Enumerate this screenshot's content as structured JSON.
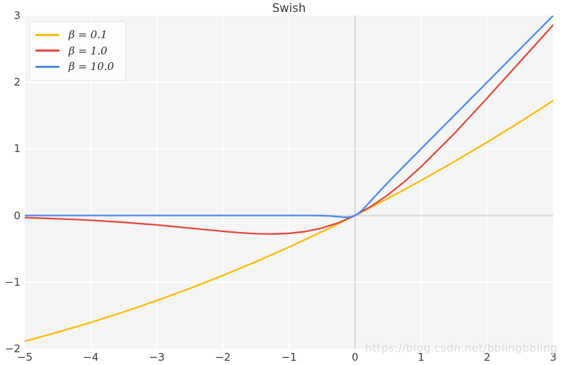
{
  "figure": {
    "title": "Swish",
    "watermark": "https://blog.csdn.net/bblingbbling"
  },
  "colors": {
    "background": "#ffffff",
    "plot_background": "#f5f5f6",
    "grid": "#ffffff",
    "zero_line": "#d8d8d8",
    "tick_label": "#3d3d3d",
    "title": "#3a3a3a",
    "watermark": "#dbdbdb",
    "legend_background": "#fdfdfe",
    "legend_border": "#e7e7ea"
  },
  "chart_data": {
    "type": "line",
    "title": "Swish",
    "xlabel": "",
    "ylabel": "",
    "xlim": [
      -5,
      3
    ],
    "ylim": [
      -2,
      3
    ],
    "grid": true,
    "legend_position": "upper left",
    "xticks": {
      "values": [
        -5,
        -4,
        -3,
        -2,
        -1,
        0,
        1,
        2,
        3
      ],
      "labels": [
        "−5",
        "−4",
        "−3",
        "−2",
        "−1",
        "0",
        "1",
        "2",
        "3"
      ]
    },
    "yticks": {
      "values": [
        -2,
        -1,
        0,
        1,
        2,
        3
      ],
      "labels": [
        "−2",
        "−1",
        "0",
        "1",
        "2",
        "3"
      ]
    },
    "series": [
      {
        "name": "β = 0.1",
        "color": "#fbbc05",
        "x": [
          -5,
          -4.5,
          -4,
          -3.5,
          -3,
          -2.5,
          -2,
          -1.5,
          -1,
          -0.5,
          0,
          0.5,
          1,
          1.5,
          2,
          2.5,
          3
        ],
        "y": [
          -1.888,
          -1.752,
          -1.605,
          -1.447,
          -1.277,
          -1.095,
          -0.9,
          -0.694,
          -0.475,
          -0.244,
          0,
          0.256,
          0.525,
          0.806,
          1.1,
          1.405,
          1.723
        ]
      },
      {
        "name": "β = 1.0",
        "color": "#e5493d",
        "x": [
          -5,
          -4.5,
          -4,
          -3.5,
          -3,
          -2.5,
          -2,
          -1.75,
          -1.5,
          -1.25,
          -1,
          -0.75,
          -0.5,
          -0.25,
          0,
          0.25,
          0.5,
          0.75,
          1,
          1.5,
          2,
          2.5,
          3
        ],
        "y": [
          -0.033,
          -0.049,
          -0.072,
          -0.103,
          -0.142,
          -0.19,
          -0.238,
          -0.259,
          -0.274,
          -0.278,
          -0.269,
          -0.241,
          -0.189,
          -0.109,
          0,
          0.141,
          0.311,
          0.509,
          0.731,
          1.226,
          1.762,
          2.31,
          2.858
        ]
      },
      {
        "name": "β = 10.0",
        "color": "#4c8bf5",
        "x": [
          -5,
          -4,
          -3,
          -2,
          -1.5,
          -1,
          -0.7,
          -0.5,
          -0.4,
          -0.3,
          -0.25,
          -0.2,
          -0.15,
          -0.1,
          -0.05,
          0,
          0.05,
          0.1,
          0.15,
          0.2,
          0.3,
          0.4,
          0.5,
          0.75,
          1,
          1.5,
          2,
          2.5,
          3
        ],
        "y": [
          0,
          0,
          0,
          0,
          0,
          0,
          -0.0006,
          -0.0034,
          -0.0072,
          -0.0142,
          -0.0189,
          -0.0238,
          -0.0274,
          -0.0269,
          -0.0189,
          0,
          0.0311,
          0.0731,
          0.1226,
          0.1762,
          0.2858,
          0.3928,
          0.4967,
          0.7496,
          1.0,
          1.5,
          2.0,
          2.5,
          3.0
        ]
      }
    ]
  }
}
